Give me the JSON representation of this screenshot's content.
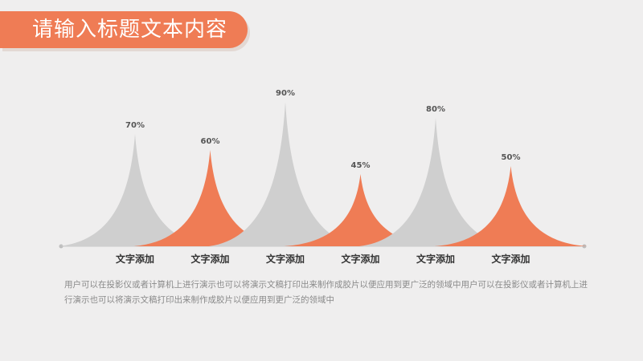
{
  "header": {
    "title": "请输入标题文本内容"
  },
  "colors": {
    "accent": "#ef7c55",
    "gray": "#cfcfcf",
    "baseline": "#c9c9c9"
  },
  "chart_data": {
    "type": "area",
    "title": "",
    "categories": [
      "文字添加",
      "文字添加",
      "文字添加",
      "文字添加",
      "文字添加",
      "文字添加"
    ],
    "values": [
      70,
      60,
      90,
      45,
      80,
      50
    ],
    "value_labels": [
      "70%",
      "60%",
      "90%",
      "45%",
      "80%",
      "50%"
    ],
    "colors": [
      "gray",
      "accent",
      "gray",
      "accent",
      "gray",
      "accent"
    ],
    "ylim": [
      0,
      100
    ],
    "grid": false,
    "legend": "none"
  },
  "description": "用户可以在投影仪或者计算机上进行演示也可以将演示文稿打印出来制作成胶片以便应用到更广泛的领域中用户可以在投影仪或者计算机上进行演示也可以将演示文稿打印出来制作成胶片以便应用到更广泛的领域中"
}
